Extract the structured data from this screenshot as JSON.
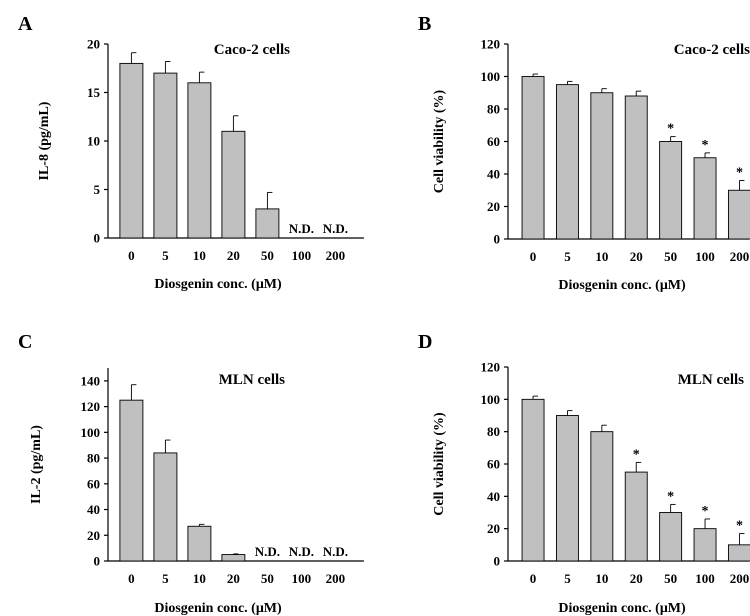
{
  "chart_data": [
    {
      "panel": "A",
      "type": "bar",
      "title": "Caco-2 cells",
      "xlabel": "Diosgenin conc. (μM)",
      "ylabel": "IL-8 (pg/mL)",
      "ylim": [
        0,
        20
      ],
      "yticks": [
        0,
        5,
        10,
        15,
        20
      ],
      "categories": [
        "0",
        "5",
        "10",
        "20",
        "50",
        "100",
        "200"
      ],
      "values": [
        18,
        17,
        16,
        11,
        3,
        null,
        null
      ],
      "errors": [
        1.1,
        1.2,
        1.1,
        1.6,
        1.7,
        null,
        null
      ],
      "bar_labels": [
        "",
        "",
        "",
        "",
        "",
        "N.D.",
        "N.D."
      ],
      "significance": [
        "",
        "",
        "",
        "",
        "",
        "",
        ""
      ],
      "grid": false,
      "bar_color": "#c0c0c0"
    },
    {
      "panel": "B",
      "type": "bar",
      "title": "Caco-2 cells",
      "xlabel": "Diosgenin conc. (μM)",
      "ylabel": "Cell viability (%)",
      "ylim": [
        0,
        120
      ],
      "yticks": [
        0,
        20,
        40,
        60,
        80,
        100,
        120
      ],
      "categories": [
        "0",
        "5",
        "10",
        "20",
        "50",
        "100",
        "200"
      ],
      "values": [
        100,
        95,
        90,
        88,
        60,
        50,
        30
      ],
      "errors": [
        1.5,
        2,
        2.5,
        3,
        3,
        3,
        6
      ],
      "bar_labels": [
        "",
        "",
        "",
        "",
        "",
        "",
        ""
      ],
      "significance": [
        "",
        "",
        "",
        "",
        "*",
        "*",
        "*"
      ],
      "grid": false,
      "bar_color": "#c0c0c0"
    },
    {
      "panel": "C",
      "type": "bar",
      "title": "MLN cells",
      "xlabel": "Diosgenin conc. (μM)",
      "ylabel": "IL-2 (pg/mL)",
      "ylim": [
        0,
        150
      ],
      "yticks": [
        0,
        20,
        40,
        60,
        80,
        100,
        120,
        140
      ],
      "categories": [
        "0",
        "5",
        "10",
        "20",
        "50",
        "100",
        "200"
      ],
      "values": [
        125,
        84,
        27,
        5,
        null,
        null,
        null
      ],
      "errors": [
        12,
        10,
        1.5,
        0.5,
        null,
        null,
        null
      ],
      "bar_labels": [
        "",
        "",
        "",
        "",
        "N.D.",
        "N.D.",
        "N.D."
      ],
      "significance": [
        "",
        "",
        "",
        "",
        "",
        "",
        ""
      ],
      "grid": false,
      "bar_color": "#c0c0c0"
    },
    {
      "panel": "D",
      "type": "bar",
      "title": "MLN cells",
      "xlabel": "Diosgenin conc. (μM)",
      "ylabel": "Cell viability (%)",
      "ylim": [
        0,
        120
      ],
      "yticks": [
        0,
        20,
        40,
        60,
        80,
        100,
        120
      ],
      "categories": [
        "0",
        "5",
        "10",
        "20",
        "50",
        "100",
        "200"
      ],
      "values": [
        100,
        90,
        80,
        55,
        30,
        20,
        10
      ],
      "errors": [
        2,
        3,
        4,
        6,
        5,
        6,
        7
      ],
      "bar_labels": [
        "",
        "",
        "",
        "",
        "",
        "",
        ""
      ],
      "significance": [
        "",
        "",
        "",
        "*",
        "*",
        "*",
        "*"
      ],
      "grid": false,
      "bar_color": "#c0c0c0"
    }
  ]
}
